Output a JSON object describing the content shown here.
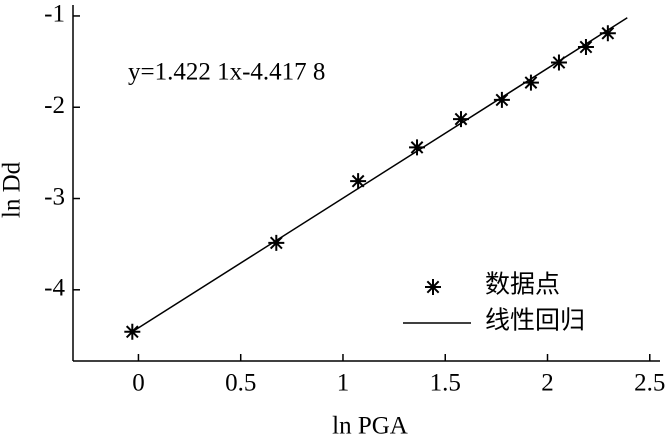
{
  "chart_data": {
    "type": "scatter",
    "equation": "y=1.422 1x-4.417 8",
    "xlabel": "ln PGA",
    "ylabel": "ln Dd",
    "xlim": [
      -0.32,
      2.55
    ],
    "ylim": [
      -4.78,
      -0.88
    ],
    "xticks": [
      0,
      0.5,
      1,
      1.5,
      2,
      2.5
    ],
    "yticks": [
      -1,
      -2,
      -3,
      -4
    ],
    "legend": "lower right",
    "series": [
      {
        "name": "数据点",
        "type": "scatter",
        "color": "#000000",
        "x": [
          -0.03,
          0.674,
          1.074,
          1.362,
          1.577,
          1.777,
          1.919,
          2.056,
          2.188,
          2.295
        ],
        "values": [
          -4.46,
          -3.486,
          -2.81,
          -2.44,
          -2.13,
          -1.92,
          -1.73,
          -1.51,
          -1.34,
          -1.19
        ]
      },
      {
        "name": "线性回归",
        "type": "line",
        "color": "#000000",
        "x": [
          -0.03,
          2.39
        ],
        "values": [
          -4.46,
          -1.02
        ]
      }
    ]
  }
}
